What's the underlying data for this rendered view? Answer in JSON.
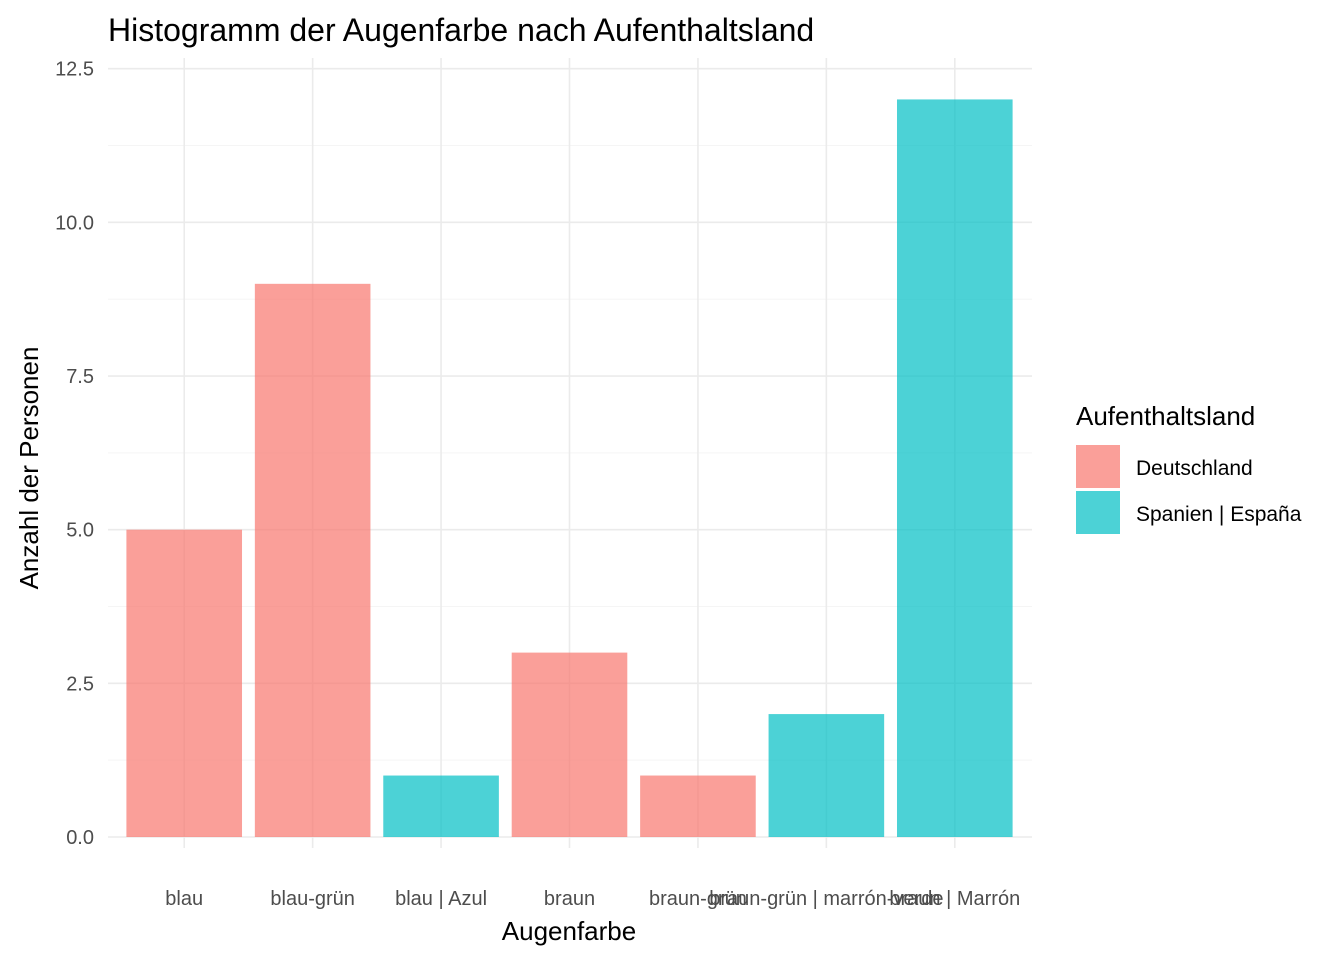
{
  "chart_data": {
    "type": "bar",
    "title": "Histogramm der Augenfarbe nach Aufenthaltsland",
    "xlabel": "Augenfarbe",
    "ylabel": "Anzahl der Personen",
    "ylim": [
      0,
      12.5
    ],
    "y_ticks": [
      0,
      2.5,
      5,
      7.5,
      10,
      12.5
    ],
    "y_tick_labels": [
      "0.0",
      "2.5",
      "5.0",
      "7.5",
      "10.0",
      "12.5"
    ],
    "categories": [
      "blau",
      "blau-grün",
      "blau | Azul",
      "braun",
      "braun-grün",
      "braun-grün | marrón-verde",
      "braun | Marrón"
    ],
    "values": [
      5,
      9,
      1,
      3,
      1,
      2,
      12
    ],
    "groups": [
      "Deutschland",
      "Deutschland",
      "Spanien | España",
      "Deutschland",
      "Deutschland",
      "Spanien | España",
      "Spanien | España"
    ],
    "legend": {
      "title": "Aufenthaltsland",
      "position": "right",
      "entries": [
        {
          "label": "Deutschland",
          "color": "#F8766D"
        },
        {
          "label": "Spanien | España",
          "color": "#00BFC4"
        }
      ]
    },
    "grid": true,
    "bar_opacity": 0.7
  }
}
